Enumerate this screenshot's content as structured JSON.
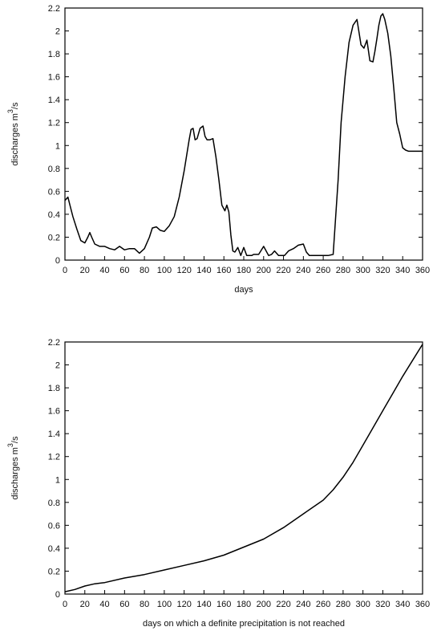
{
  "chart_data": [
    {
      "type": "line",
      "title": "",
      "xlabel": "days",
      "ylabel": "discharges m",
      "ylabel_sup": "3",
      "ylabel_unit": "/s",
      "xlim": [
        0,
        360
      ],
      "ylim": [
        0,
        2.2
      ],
      "xticks": [
        0,
        20,
        40,
        60,
        80,
        100,
        120,
        140,
        160,
        180,
        200,
        220,
        240,
        260,
        280,
        300,
        320,
        340,
        360
      ],
      "yticks": [
        0,
        0.2,
        0.4,
        0.6,
        0.8,
        1,
        1.2,
        1.4,
        1.6,
        1.8,
        2,
        2.2
      ],
      "grid": false,
      "series": [
        {
          "x": [
            0,
            3,
            5,
            8,
            12,
            16,
            20,
            23,
            25,
            27,
            30,
            35,
            40,
            45,
            50,
            55,
            60,
            65,
            70,
            75,
            80,
            85,
            88,
            92,
            96,
            100,
            105,
            110,
            115,
            120,
            125,
            127,
            129,
            131,
            133,
            136,
            139,
            141,
            143,
            146,
            149,
            152,
            155,
            158,
            161,
            163,
            165,
            167,
            169,
            171,
            174,
            177,
            180,
            183,
            186,
            188,
            190,
            195,
            200,
            205,
            208,
            211,
            215,
            218,
            221,
            225,
            230,
            235,
            240,
            243,
            246,
            249,
            252,
            256,
            260,
            265,
            270,
            275,
            278,
            282,
            286,
            290,
            294,
            298,
            301,
            304,
            307,
            310,
            312,
            314,
            316,
            318,
            320,
            322,
            325,
            328,
            331,
            334,
            337,
            340,
            343,
            346,
            349,
            352,
            355,
            358,
            360
          ],
          "y": [
            0.52,
            0.55,
            0.48,
            0.38,
            0.27,
            0.17,
            0.15,
            0.2,
            0.24,
            0.2,
            0.14,
            0.12,
            0.12,
            0.1,
            0.09,
            0.12,
            0.09,
            0.1,
            0.1,
            0.06,
            0.1,
            0.2,
            0.28,
            0.29,
            0.26,
            0.25,
            0.3,
            0.38,
            0.55,
            0.78,
            1.05,
            1.14,
            1.15,
            1.05,
            1.06,
            1.15,
            1.17,
            1.08,
            1.05,
            1.05,
            1.06,
            0.9,
            0.7,
            0.48,
            0.43,
            0.48,
            0.42,
            0.22,
            0.08,
            0.07,
            0.11,
            0.04,
            0.11,
            0.04,
            0.04,
            0.04,
            0.05,
            0.05,
            0.12,
            0.04,
            0.05,
            0.08,
            0.04,
            0.04,
            0.04,
            0.08,
            0.1,
            0.13,
            0.14,
            0.07,
            0.04,
            0.04,
            0.04,
            0.04,
            0.04,
            0.04,
            0.05,
            0.7,
            1.2,
            1.6,
            1.9,
            2.05,
            2.1,
            1.88,
            1.85,
            1.92,
            1.74,
            1.73,
            1.82,
            1.93,
            2.05,
            2.13,
            2.15,
            2.1,
            1.98,
            1.78,
            1.5,
            1.2,
            1.1,
            0.98,
            0.96,
            0.95,
            0.95,
            0.95,
            0.95,
            0.95,
            0.95
          ]
        }
      ]
    },
    {
      "type": "line",
      "title": "",
      "xlabel": "days on which a definite precipitation is not reached",
      "ylabel": "discharges m",
      "ylabel_sup": "3",
      "ylabel_unit": "/s",
      "xlim": [
        0,
        360
      ],
      "ylim": [
        0,
        2.2
      ],
      "xticks": [
        0,
        20,
        40,
        60,
        80,
        100,
        120,
        140,
        160,
        180,
        200,
        220,
        240,
        260,
        280,
        300,
        320,
        340,
        360
      ],
      "yticks": [
        0,
        0.2,
        0.4,
        0.6,
        0.8,
        1,
        1.2,
        1.4,
        1.6,
        1.8,
        2,
        2.2
      ],
      "grid": false,
      "series": [
        {
          "x": [
            0,
            10,
            20,
            30,
            40,
            60,
            80,
            100,
            120,
            140,
            160,
            180,
            200,
            220,
            240,
            260,
            270,
            280,
            290,
            300,
            310,
            320,
            330,
            340,
            350,
            360
          ],
          "y": [
            0.02,
            0.04,
            0.07,
            0.09,
            0.1,
            0.14,
            0.17,
            0.21,
            0.25,
            0.29,
            0.34,
            0.41,
            0.48,
            0.58,
            0.7,
            0.82,
            0.91,
            1.02,
            1.15,
            1.3,
            1.45,
            1.6,
            1.75,
            1.9,
            2.04,
            2.18
          ]
        }
      ]
    }
  ]
}
